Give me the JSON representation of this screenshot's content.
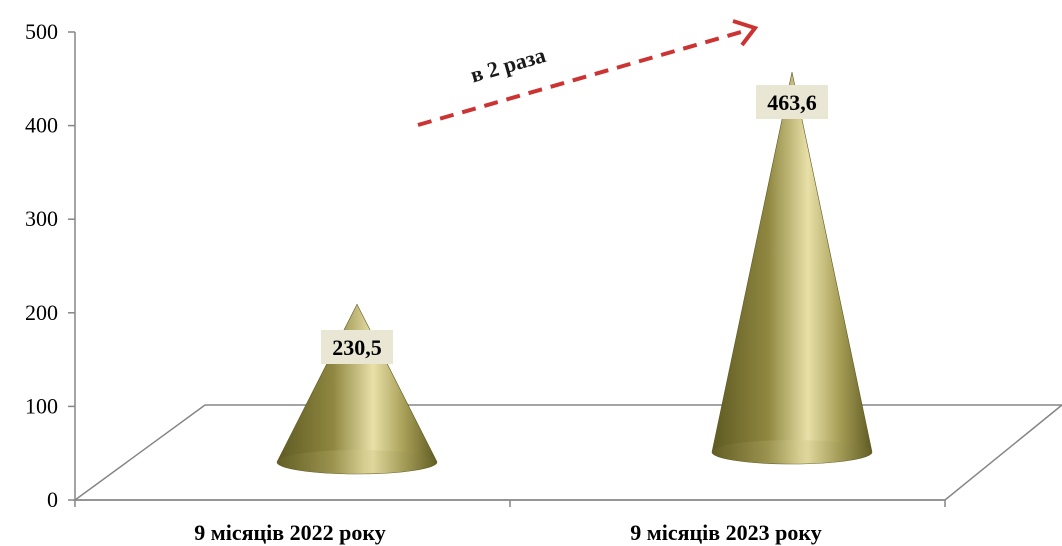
{
  "chart_data": {
    "type": "bar",
    "mark": "cone",
    "categories": [
      "9 місяців 2022 року",
      "9 місяців 2023 року"
    ],
    "values": [
      230.5,
      463.6
    ],
    "value_labels": [
      "230,5",
      "463,6"
    ],
    "y_ticks": [
      "0",
      "100",
      "200",
      "300",
      "400",
      "500"
    ],
    "ylim": [
      0,
      500
    ],
    "annotation": "в 2 раза",
    "colors": {
      "cone_dark": "#5e5a22",
      "cone_mid": "#a69d55",
      "cone_light": "#e8e0a8",
      "label_bg": "#e9e6d3",
      "arrow": "#cc3333",
      "axis": "#868686"
    }
  }
}
